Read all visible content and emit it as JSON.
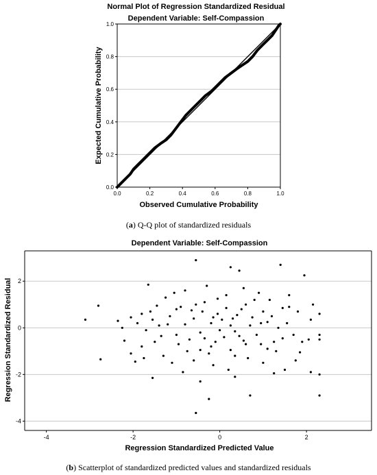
{
  "caption_a": {
    "letter": "a",
    "text": "Q-Q plot of standardized residuals"
  },
  "caption_b": {
    "letter": "b",
    "text": "Scatterplot of standardized predicted values and standardized residuals"
  },
  "chart_data": [
    {
      "type": "line",
      "title": "Normal Plot of Regression Standardized Residual",
      "subtitle": "Dependent Variable: Self-Compassion",
      "xlabel": "Observed Cumulative Probability",
      "ylabel": "Expected Cumulative Probability",
      "xlim": [
        0,
        1
      ],
      "ylim": [
        0,
        1
      ],
      "xticks": [
        "0.0",
        "0.2",
        "0.4",
        "0.6",
        "0.8",
        "1.0"
      ],
      "yticks": [
        "0.0",
        "0.2",
        "0.4",
        "0.6",
        "0.8",
        "1.0"
      ],
      "grid": "horizontal",
      "reference_line": [
        [
          0,
          0
        ],
        [
          1,
          1
        ]
      ],
      "series": [
        {
          "x": [
            0.0,
            0.02,
            0.05,
            0.08,
            0.1,
            0.13,
            0.16,
            0.2,
            0.23,
            0.27,
            0.3,
            0.33,
            0.36,
            0.39,
            0.42,
            0.45,
            0.48,
            0.51,
            0.54,
            0.58,
            0.62,
            0.66,
            0.7,
            0.74,
            0.77,
            0.8,
            0.83,
            0.86,
            0.89,
            0.92,
            0.95,
            0.97,
            0.99,
            1.0
          ],
          "y": [
            0.0,
            0.02,
            0.05,
            0.08,
            0.11,
            0.14,
            0.17,
            0.21,
            0.24,
            0.27,
            0.29,
            0.32,
            0.36,
            0.4,
            0.44,
            0.47,
            0.5,
            0.53,
            0.56,
            0.59,
            0.63,
            0.67,
            0.7,
            0.73,
            0.75,
            0.77,
            0.8,
            0.84,
            0.87,
            0.9,
            0.93,
            0.96,
            0.99,
            1.0
          ]
        }
      ]
    },
    {
      "type": "scatter",
      "title": "Dependent Variable: Self-Compassion",
      "xlabel": "Regression Standardized Predicted Value",
      "ylabel": "Regression Standardized Residual",
      "xlim": [
        -4.5,
        3.5
      ],
      "ylim": [
        -4.4,
        3.3
      ],
      "xticks": [
        "-4",
        "-2",
        "0",
        "2"
      ],
      "yticks": [
        "-4",
        "-2",
        "0",
        "2"
      ],
      "grid": "horizontal",
      "points": [
        [
          -3.1,
          0.35
        ],
        [
          -2.8,
          0.95
        ],
        [
          -2.75,
          -1.35
        ],
        [
          -2.25,
          0.0
        ],
        [
          -2.05,
          -1.1
        ],
        [
          -2.05,
          0.45
        ],
        [
          -1.95,
          -1.45
        ],
        [
          -1.8,
          0.6
        ],
        [
          -1.65,
          1.85
        ],
        [
          -1.55,
          -2.15
        ],
        [
          -0.55,
          2.9
        ],
        [
          -0.45,
          -2.3
        ],
        [
          -0.55,
          -3.65
        ],
        [
          -0.25,
          -3.05
        ],
        [
          0.25,
          2.6
        ],
        [
          0.45,
          2.45
        ],
        [
          0.35,
          -2.1
        ],
        [
          1.4,
          2.7
        ],
        [
          1.95,
          2.25
        ],
        [
          2.3,
          -2.0
        ],
        [
          2.3,
          -2.9
        ],
        [
          0.7,
          -2.9
        ],
        [
          1.25,
          -1.95
        ],
        [
          2.1,
          -1.9
        ],
        [
          1.5,
          -1.8
        ],
        [
          2.15,
          1.0
        ],
        [
          1.6,
          1.4
        ],
        [
          1.8,
          0.7
        ],
        [
          2.3,
          0.6
        ],
        [
          2.3,
          -0.5
        ],
        [
          2.3,
          -0.3
        ],
        [
          2.05,
          -0.5
        ],
        [
          1.9,
          -0.6
        ],
        [
          1.7,
          -0.3
        ],
        [
          1.55,
          0.2
        ],
        [
          1.45,
          -0.45
        ],
        [
          1.2,
          0.5
        ],
        [
          1.1,
          -0.9
        ],
        [
          0.95,
          0.2
        ],
        [
          0.8,
          1.2
        ],
        [
          0.6,
          -0.7
        ],
        [
          0.5,
          0.8
        ],
        [
          0.35,
          -1.2
        ],
        [
          0.25,
          0.1
        ],
        [
          0.1,
          -0.4
        ],
        [
          -0.05,
          0.6
        ],
        [
          -0.2,
          -0.8
        ],
        [
          -0.35,
          1.1
        ],
        [
          -0.45,
          -0.2
        ],
        [
          -0.6,
          0.4
        ],
        [
          -0.75,
          -1.0
        ],
        [
          -0.9,
          0.9
        ],
        [
          -1.0,
          -0.3
        ],
        [
          -1.15,
          0.5
        ],
        [
          -1.3,
          -1.2
        ],
        [
          -1.4,
          0.1
        ],
        [
          -1.5,
          -0.6
        ],
        [
          -1.6,
          0.7
        ],
        [
          -1.7,
          -0.1
        ],
        [
          -1.8,
          -0.8
        ],
        [
          -1.9,
          0.2
        ],
        [
          -1.25,
          1.3
        ],
        [
          -1.05,
          1.5
        ],
        [
          -0.8,
          1.6
        ],
        [
          -0.3,
          1.8
        ],
        [
          0.15,
          1.4
        ],
        [
          0.55,
          1.7
        ],
        [
          0.9,
          1.5
        ],
        [
          1.15,
          1.2
        ],
        [
          -1.1,
          -1.5
        ],
        [
          -0.85,
          -1.9
        ],
        [
          -0.6,
          -1.4
        ],
        [
          -0.15,
          -1.6
        ],
        [
          0.2,
          -1.8
        ],
        [
          0.65,
          -1.3
        ],
        [
          1.0,
          -1.5
        ],
        [
          1.3,
          -1.0
        ],
        [
          -0.2,
          0.2
        ],
        [
          0.0,
          -0.1
        ],
        [
          0.3,
          0.4
        ],
        [
          -0.4,
          0.7
        ],
        [
          0.7,
          0.1
        ],
        [
          -0.7,
          -0.5
        ],
        [
          1.0,
          0.7
        ],
        [
          -1.0,
          0.8
        ],
        [
          0.45,
          -0.35
        ],
        [
          -0.1,
          -0.6
        ],
        [
          0.15,
          0.85
        ],
        [
          -0.55,
          1.0
        ],
        [
          0.85,
          -0.3
        ],
        [
          -1.35,
          -0.35
        ],
        [
          1.35,
          0.0
        ],
        [
          -0.25,
          -1.1
        ],
        [
          0.6,
          1.0
        ],
        [
          1.25,
          -0.6
        ],
        [
          -1.55,
          0.35
        ],
        [
          0.05,
          0.35
        ],
        [
          -0.8,
          0.15
        ],
        [
          0.4,
          0.55
        ],
        [
          -0.35,
          -0.45
        ],
        [
          0.95,
          -0.7
        ],
        [
          -0.95,
          -0.7
        ],
        [
          1.6,
          0.9
        ],
        [
          -1.75,
          -1.3
        ],
        [
          1.75,
          -1.4
        ],
        [
          -0.05,
          1.25
        ],
        [
          0.25,
          -0.95
        ],
        [
          -0.65,
          0.75
        ],
        [
          0.75,
          0.45
        ],
        [
          -1.2,
          0.15
        ],
        [
          1.1,
          0.25
        ],
        [
          -0.45,
          -0.95
        ],
        [
          0.55,
          -0.55
        ],
        [
          -0.15,
          0.45
        ],
        [
          0.35,
          -0.15
        ],
        [
          -1.45,
          0.95
        ],
        [
          1.45,
          0.85
        ],
        [
          -2.2,
          -0.55
        ],
        [
          -2.35,
          0.3
        ],
        [
          2.1,
          0.35
        ],
        [
          1.85,
          -1.05
        ]
      ]
    }
  ]
}
